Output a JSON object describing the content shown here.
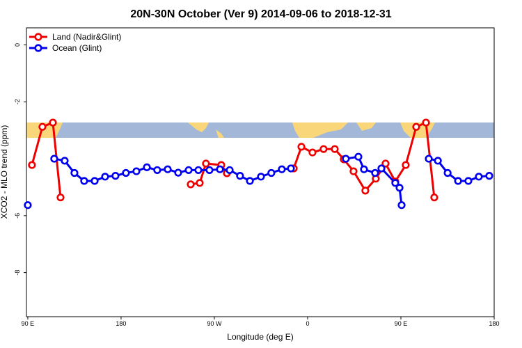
{
  "chart_data": {
    "type": "line",
    "title": "20N-30N October (Ver 9)   2014-09-06 to 2018-12-31",
    "x_label": "Longitude (deg E)",
    "y_label": "XCO2 - MLO trend (ppm)",
    "xlim": [
      88.7,
      540
    ],
    "ylim": [
      -9.55,
      0.6
    ],
    "xticks": [
      {
        "value": 90,
        "label": "90 E"
      },
      {
        "value": 180,
        "label": "180"
      },
      {
        "value": 270,
        "label": "90 W"
      },
      {
        "value": 360,
        "label": "0"
      },
      {
        "value": 450,
        "label": "90 E"
      },
      {
        "value": 540,
        "label": "180"
      }
    ],
    "yticks": [
      0,
      -2,
      -6,
      -8
    ],
    "legend": "top-left",
    "series": [
      {
        "name": "Land (Nadir&Glint)",
        "color": "#ee0000",
        "x": [
          94.0,
          104.1,
          114.2,
          121.6,
          null,
          247.2,
          255.9,
          261.9,
          276.7,
          282.1,
          null,
          346.6,
          354.0,
          364.7,
          375.4,
          386.2,
          394.9,
          404.3,
          415.7,
          425.8,
          435.2,
          444.6,
          454.7,
          464.8,
          474.2,
          482.2
        ],
        "values": [
          -4.22,
          -2.88,
          -2.73,
          -5.36,
          null,
          -4.9,
          -4.85,
          -4.17,
          -4.22,
          -4.51,
          null,
          -4.34,
          -3.58,
          -3.78,
          -3.66,
          -3.66,
          -4.02,
          -4.44,
          -5.12,
          -4.7,
          -4.17,
          -4.8,
          -4.22,
          -2.88,
          -2.73,
          -5.36
        ]
      },
      {
        "name": "Ocean (Glint)",
        "color": "#0000ee",
        "x": [
          90.0,
          null,
          115.5,
          125.6,
          135.0,
          144.4,
          154.5,
          164.6,
          174.6,
          184.7,
          194.8,
          204.9,
          214.9,
          225.0,
          235.1,
          245.2,
          254.6,
          265.3,
          275.4,
          284.8,
          294.8,
          304.3,
          315.0,
          325.0,
          335.1,
          343.9,
          null,
          396.9,
          409.0,
          414.4,
          425.1,
          431.2,
          444.6,
          448.7,
          450.7,
          null,
          476.9,
          485.7,
          495.1,
          505.2,
          515.1,
          525.2,
          535.3
        ],
        "values": [
          -5.63,
          null,
          -4.0,
          -4.07,
          -4.5,
          -4.78,
          -4.78,
          -4.63,
          -4.6,
          -4.5,
          -4.44,
          -4.3,
          -4.4,
          -4.37,
          -4.49,
          -4.4,
          -4.4,
          -4.4,
          -4.37,
          -4.4,
          -4.6,
          -4.78,
          -4.63,
          -4.5,
          -4.37,
          -4.34,
          null,
          -4.0,
          -3.93,
          -4.37,
          -4.5,
          -4.34,
          -4.85,
          -5.02,
          -5.63,
          null,
          -4.0,
          -4.07,
          -4.5,
          -4.78,
          -4.78,
          -4.63,
          -4.6
        ]
      }
    ]
  }
}
